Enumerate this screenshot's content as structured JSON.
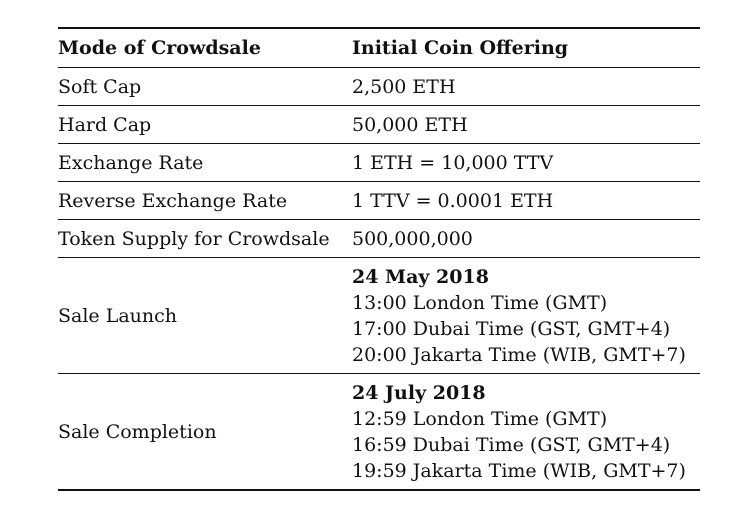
{
  "table": {
    "header": {
      "col1": "Mode of Crowdsale",
      "col2": "Initial Coin Offering"
    },
    "rows": [
      {
        "label": "Soft Cap",
        "value": "2,500 ETH"
      },
      {
        "label": "Hard Cap",
        "value": "50,000 ETH"
      },
      {
        "label": "Exchange Rate",
        "value": "1 ETH = 10,000 TTV"
      },
      {
        "label": "Reverse Exchange Rate",
        "value": "1 TTV = 0.0001 ETH"
      },
      {
        "label": "Token Supply for Crowdsale",
        "value": "500,000,000"
      }
    ],
    "sale_launch": {
      "label": "Sale Launch",
      "date": "24 May 2018",
      "times": [
        "13:00 London Time (GMT)",
        "17:00 Dubai Time (GST, GMT+4)",
        "20:00 Jakarta Time (WIB, GMT+7)"
      ]
    },
    "sale_completion": {
      "label": "Sale Completion",
      "date": "24 July 2018",
      "times": [
        "12:59 London Time (GMT)",
        "16:59 Dubai Time (GST, GMT+4)",
        "19:59 Jakarta Time (WIB, GMT+7)"
      ]
    }
  }
}
